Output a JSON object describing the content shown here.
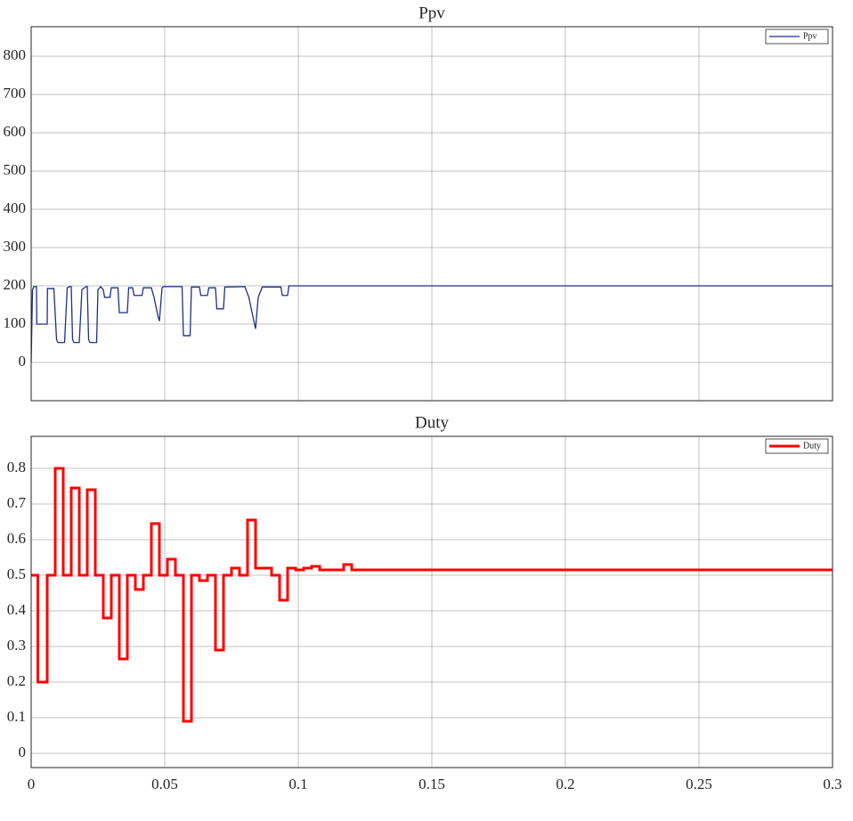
{
  "chart_data": [
    {
      "type": "line",
      "title": "Ppv",
      "x": [
        0,
        0.0005,
        0.001,
        0.002,
        0.0021,
        0.006,
        0.0061,
        0.0085,
        0.0095,
        0.01,
        0.0125,
        0.0135,
        0.0145,
        0.015,
        0.0155,
        0.016,
        0.018,
        0.019,
        0.0205,
        0.021,
        0.0215,
        0.022,
        0.0245,
        0.025,
        0.026,
        0.027,
        0.0275,
        0.0295,
        0.03,
        0.0325,
        0.033,
        0.036,
        0.0365,
        0.038,
        0.0385,
        0.0415,
        0.042,
        0.045,
        0.046,
        0.0475,
        0.048,
        0.049,
        0.0495,
        0.0565,
        0.057,
        0.0595,
        0.06,
        0.063,
        0.0635,
        0.066,
        0.0665,
        0.069,
        0.0695,
        0.072,
        0.0725,
        0.08,
        0.0815,
        0.083,
        0.084,
        0.085,
        0.0865,
        0.0935,
        0.094,
        0.096,
        0.0965,
        0.3
      ],
      "series": [
        {
          "name": "Ppv",
          "color": "#1f2f8a",
          "values": [
            0,
            190,
            198,
            198,
            100,
            100,
            193,
            193,
            60,
            52,
            52,
            195,
            198,
            198,
            60,
            52,
            52,
            190,
            198,
            198,
            60,
            52,
            52,
            190,
            198,
            190,
            170,
            170,
            195,
            195,
            130,
            130,
            195,
            195,
            175,
            175,
            195,
            195,
            170,
            120,
            108,
            195,
            198,
            198,
            70,
            70,
            197,
            197,
            175,
            175,
            195,
            195,
            140,
            140,
            197,
            198,
            170,
            120,
            88,
            170,
            197,
            197,
            175,
            175,
            200,
            200
          ]
        }
      ],
      "xlim": [
        0,
        0.3
      ],
      "xticks": [
        0,
        0.05,
        0.1,
        0.15,
        0.2,
        0.25,
        0.3
      ],
      "xtick_labels": false,
      "ylim": [
        -100,
        877
      ],
      "yticks": [
        0,
        100,
        200,
        300,
        400,
        500,
        600,
        700,
        800
      ],
      "grid": true,
      "legend": "upper right"
    },
    {
      "type": "line",
      "title": "Duty",
      "x": [
        0,
        0.0025,
        0.0025,
        0.006,
        0.006,
        0.009,
        0.009,
        0.012,
        0.012,
        0.015,
        0.015,
        0.018,
        0.018,
        0.021,
        0.021,
        0.024,
        0.024,
        0.027,
        0.027,
        0.03,
        0.03,
        0.033,
        0.033,
        0.036,
        0.036,
        0.039,
        0.039,
        0.042,
        0.042,
        0.045,
        0.045,
        0.048,
        0.048,
        0.051,
        0.051,
        0.054,
        0.054,
        0.057,
        0.057,
        0.06,
        0.06,
        0.063,
        0.063,
        0.066,
        0.066,
        0.069,
        0.069,
        0.072,
        0.072,
        0.075,
        0.075,
        0.078,
        0.078,
        0.081,
        0.081,
        0.084,
        0.084,
        0.09,
        0.09,
        0.093,
        0.093,
        0.096,
        0.096,
        0.099,
        0.099,
        0.102,
        0.102,
        0.105,
        0.105,
        0.108,
        0.108,
        0.117,
        0.117,
        0.12,
        0.12,
        0.3
      ],
      "series": [
        {
          "name": "Duty",
          "color": "#ff0000",
          "values": [
            0.5,
            0.5,
            0.2,
            0.2,
            0.5,
            0.5,
            0.8,
            0.8,
            0.5,
            0.5,
            0.745,
            0.745,
            0.5,
            0.5,
            0.74,
            0.74,
            0.5,
            0.5,
            0.38,
            0.38,
            0.5,
            0.5,
            0.265,
            0.265,
            0.5,
            0.5,
            0.46,
            0.46,
            0.5,
            0.5,
            0.645,
            0.645,
            0.5,
            0.5,
            0.545,
            0.545,
            0.5,
            0.5,
            0.09,
            0.09,
            0.5,
            0.5,
            0.485,
            0.485,
            0.5,
            0.5,
            0.29,
            0.29,
            0.5,
            0.5,
            0.52,
            0.52,
            0.5,
            0.5,
            0.655,
            0.655,
            0.52,
            0.52,
            0.5,
            0.5,
            0.43,
            0.43,
            0.52,
            0.52,
            0.515,
            0.515,
            0.52,
            0.52,
            0.525,
            0.525,
            0.515,
            0.515,
            0.53,
            0.53,
            0.515,
            0.515
          ]
        }
      ],
      "xlim": [
        0,
        0.3
      ],
      "xticks": [
        0,
        0.05,
        0.1,
        0.15,
        0.2,
        0.25,
        0.3
      ],
      "xtick_labels": true,
      "ylim": [
        -0.04,
        0.89
      ],
      "yticks": [
        0,
        0.1,
        0.2,
        0.3,
        0.4,
        0.5,
        0.6,
        0.7,
        0.8
      ],
      "grid": true,
      "legend": "upper right"
    }
  ]
}
